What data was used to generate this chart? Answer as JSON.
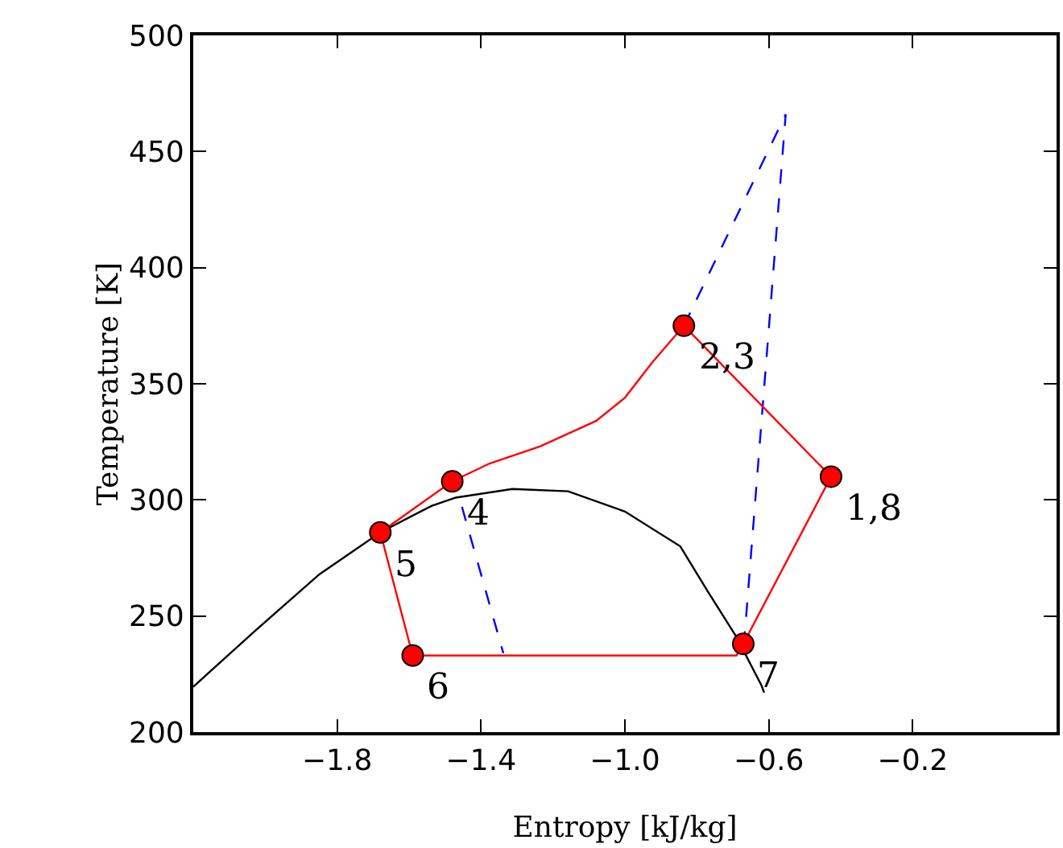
{
  "chart_data": {
    "type": "line",
    "xlabel": "Entropy [kJ/kg]",
    "ylabel": "Temperature [K]",
    "xlim": [
      -2.2,
      0.2
    ],
    "ylim": [
      200,
      500
    ],
    "xticks": [
      {
        "value": -1.8,
        "label": "−1.8"
      },
      {
        "value": -1.4,
        "label": "−1.4"
      },
      {
        "value": -1.0,
        "label": "−1.0"
      },
      {
        "value": -0.6,
        "label": "−0.6"
      },
      {
        "value": -0.2,
        "label": "−0.2"
      }
    ],
    "yticks": [
      200,
      250,
      300,
      350,
      400,
      450,
      500
    ],
    "grid": false,
    "series": [
      {
        "color": "#000000",
        "marker": "none",
        "line_style": "solid",
        "x": [
          -2.2,
          -2.027,
          -1.849,
          -1.68,
          -1.538,
          -1.47,
          -1.313,
          -1.158,
          -1.0,
          -0.846,
          -0.77,
          -0.69,
          -0.62,
          -0.613
        ],
        "values": [
          219.5,
          243.8,
          268,
          286,
          297.4,
          301,
          304.7,
          303.7,
          295,
          280,
          260.7,
          241,
          220,
          217
        ]
      },
      {
        "color": "#0000ff",
        "marker": "none",
        "line_style": "dashed",
        "x": [
          -0.836,
          -0.553,
          -0.668,
          null,
          -1.453,
          -1.338
        ],
        "values": [
          375,
          466,
          240,
          null,
          297,
          234
        ]
      },
      {
        "color": "#ff0000",
        "marker": "none",
        "line_style": "solid",
        "x": [
          -0.427,
          -0.836,
          -0.925,
          -1.0,
          -1.08,
          -1.236,
          -1.376,
          -1.48,
          -1.68,
          -1.59,
          -0.69,
          -0.671
        ],
        "values": [
          310,
          375,
          359,
          344,
          334,
          323,
          315.7,
          308,
          286,
          233,
          233,
          238
        ]
      },
      {
        "color": "#ff0000",
        "marker": "none",
        "line_style": "solid",
        "x": [
          -0.671,
          -0.427
        ],
        "values": [
          238,
          310
        ]
      },
      {
        "type": "scatter",
        "color": "#ff0000",
        "marker": "circle",
        "x": [
          -0.427,
          -0.836,
          -1.48,
          -1.68,
          -1.59,
          -0.671
        ],
        "values": [
          310,
          375,
          308,
          286,
          233,
          238
        ]
      }
    ],
    "annotations": [
      {
        "text": "1,8",
        "x": -0.427,
        "y": 310
      },
      {
        "text": "2,3",
        "x": -0.836,
        "y": 375
      },
      {
        "text": "4",
        "x": -1.48,
        "y": 308
      },
      {
        "text": "5",
        "x": -1.68,
        "y": 286
      },
      {
        "text": "6",
        "x": -1.59,
        "y": 233
      },
      {
        "text": "7",
        "x": -0.671,
        "y": 238
      }
    ]
  }
}
